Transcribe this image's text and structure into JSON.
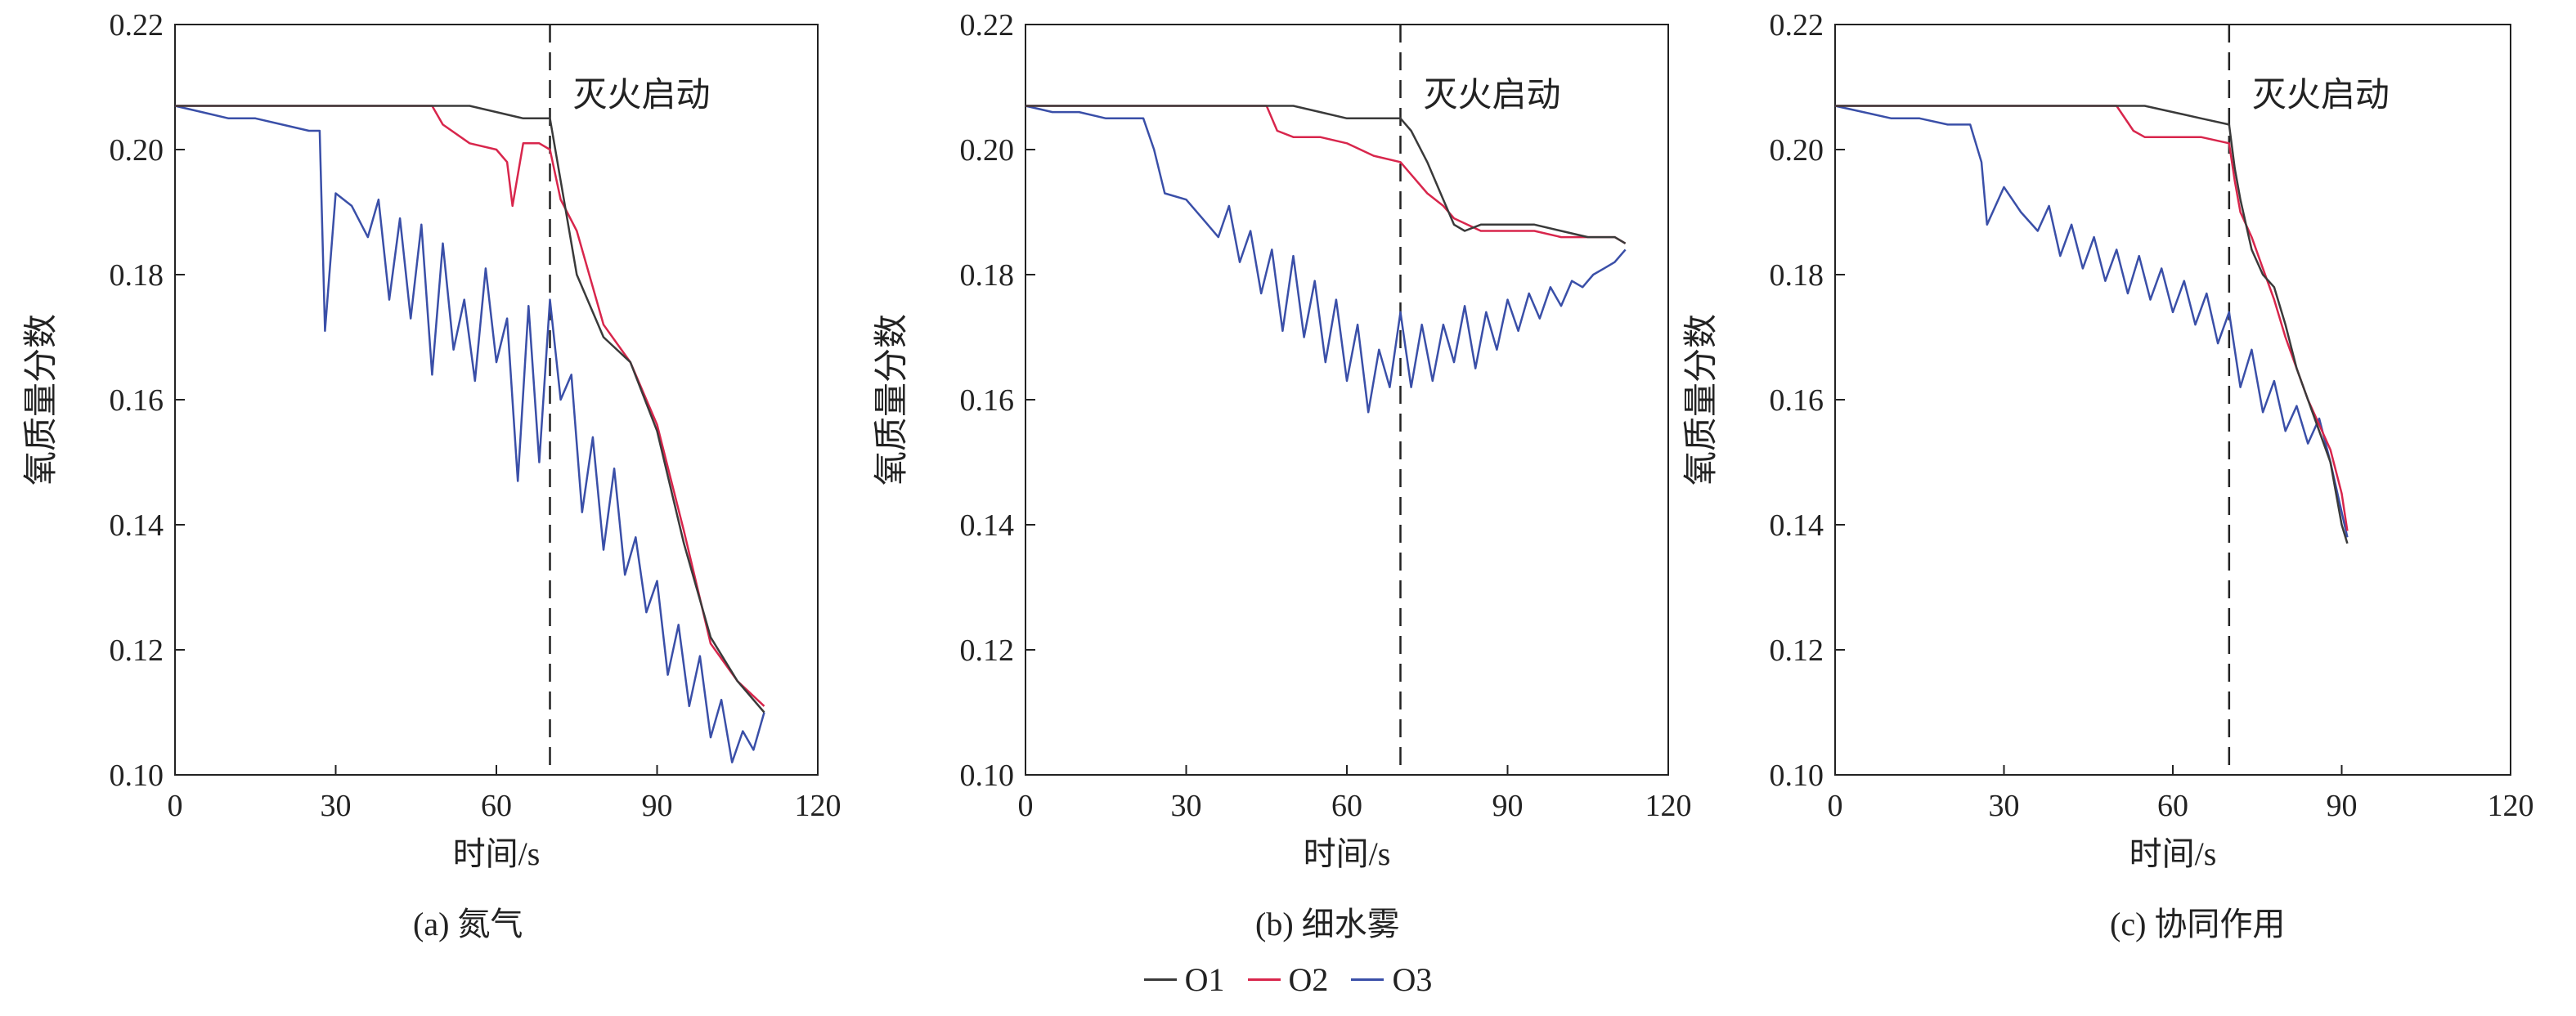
{
  "colors": {
    "O1": "#3a3a3a",
    "O2": "#d8264c",
    "O3": "#3a4fa8",
    "O3_alt": "#2f6e8c",
    "marker": "#222222"
  },
  "legend": [
    {
      "name": "O1",
      "color": "#3a3a3a"
    },
    {
      "name": "O2",
      "color": "#d8264c"
    },
    {
      "name": "O3",
      "color": "#3a4fa8"
    }
  ],
  "chart_data": [
    {
      "type": "line",
      "caption": "(a) 氮气",
      "xlabel": "时间/s",
      "ylabel": "氧质量分数",
      "xlim": [
        0,
        120
      ],
      "ylim": [
        0.1,
        0.22
      ],
      "xticks": [
        "0",
        "30",
        "60",
        "90",
        "120"
      ],
      "yticks": [
        "0.10",
        "0.12",
        "0.14",
        "0.16",
        "0.18",
        "0.20",
        "0.22"
      ],
      "annotation": {
        "text": "灭火启动",
        "x": 70
      },
      "series": [
        {
          "name": "O1",
          "x": [
            0,
            10,
            20,
            30,
            40,
            50,
            55,
            60,
            65,
            68,
            70,
            72,
            75,
            80,
            85,
            90,
            95,
            100,
            105,
            110
          ],
          "values": [
            0.207,
            0.207,
            0.207,
            0.207,
            0.207,
            0.207,
            0.207,
            0.206,
            0.205,
            0.205,
            0.205,
            0.195,
            0.18,
            0.17,
            0.166,
            0.155,
            0.137,
            0.122,
            0.115,
            0.11
          ]
        },
        {
          "name": "O2",
          "x": [
            0,
            10,
            20,
            30,
            40,
            48,
            50,
            55,
            60,
            62,
            63,
            65,
            68,
            70,
            72,
            75,
            80,
            85,
            90,
            95,
            100,
            105,
            110
          ],
          "values": [
            0.207,
            0.207,
            0.207,
            0.207,
            0.207,
            0.207,
            0.204,
            0.201,
            0.2,
            0.198,
            0.191,
            0.201,
            0.201,
            0.2,
            0.192,
            0.187,
            0.172,
            0.166,
            0.156,
            0.139,
            0.121,
            0.115,
            0.111
          ]
        },
        {
          "name": "O3",
          "x": [
            0,
            5,
            10,
            15,
            20,
            25,
            27,
            28,
            30,
            33,
            36,
            38,
            40,
            42,
            44,
            46,
            48,
            50,
            52,
            54,
            56,
            58,
            60,
            62,
            64,
            66,
            68,
            70,
            72,
            74,
            76,
            78,
            80,
            82,
            84,
            86,
            88,
            90,
            92,
            94,
            96,
            98,
            100,
            102,
            104,
            106,
            108,
            110
          ],
          "values": [
            0.207,
            0.206,
            0.205,
            0.205,
            0.204,
            0.203,
            0.203,
            0.171,
            0.193,
            0.191,
            0.186,
            0.192,
            0.176,
            0.189,
            0.173,
            0.188,
            0.164,
            0.185,
            0.168,
            0.176,
            0.163,
            0.181,
            0.166,
            0.173,
            0.147,
            0.175,
            0.15,
            0.176,
            0.16,
            0.164,
            0.142,
            0.154,
            0.136,
            0.149,
            0.132,
            0.138,
            0.126,
            0.131,
            0.116,
            0.124,
            0.111,
            0.119,
            0.106,
            0.112,
            0.102,
            0.107,
            0.104,
            0.11
          ]
        }
      ]
    },
    {
      "type": "line",
      "caption": "(b) 细水雾",
      "xlabel": "时间/s",
      "ylabel": "氧质量分数",
      "xlim": [
        0,
        120
      ],
      "ylim": [
        0.1,
        0.22
      ],
      "xticks": [
        "0",
        "30",
        "60",
        "90",
        "120"
      ],
      "yticks": [
        "0.10",
        "0.12",
        "0.14",
        "0.16",
        "0.18",
        "0.20",
        "0.22"
      ],
      "annotation": {
        "text": "灭火启动",
        "x": 70
      },
      "series": [
        {
          "name": "O1",
          "x": [
            0,
            10,
            20,
            30,
            40,
            50,
            55,
            60,
            65,
            70,
            72,
            75,
            78,
            80,
            82,
            85,
            90,
            95,
            100,
            105,
            110,
            112
          ],
          "values": [
            0.207,
            0.207,
            0.207,
            0.207,
            0.207,
            0.207,
            0.206,
            0.205,
            0.205,
            0.205,
            0.203,
            0.198,
            0.192,
            0.188,
            0.187,
            0.188,
            0.188,
            0.188,
            0.187,
            0.186,
            0.186,
            0.185
          ]
        },
        {
          "name": "O2",
          "x": [
            0,
            10,
            20,
            30,
            40,
            45,
            47,
            50,
            55,
            60,
            65,
            70,
            72,
            75,
            78,
            80,
            85,
            90,
            95,
            100,
            105,
            110,
            112
          ],
          "values": [
            0.207,
            0.207,
            0.207,
            0.207,
            0.207,
            0.207,
            0.203,
            0.202,
            0.202,
            0.201,
            0.199,
            0.198,
            0.196,
            0.193,
            0.191,
            0.189,
            0.187,
            0.187,
            0.187,
            0.186,
            0.186,
            0.186,
            0.185
          ]
        },
        {
          "name": "O3",
          "x": [
            0,
            5,
            10,
            15,
            20,
            22,
            24,
            26,
            30,
            33,
            36,
            38,
            40,
            42,
            44,
            46,
            48,
            50,
            52,
            54,
            56,
            58,
            60,
            62,
            64,
            66,
            68,
            70,
            72,
            74,
            76,
            78,
            80,
            82,
            84,
            86,
            88,
            90,
            92,
            94,
            96,
            98,
            100,
            102,
            104,
            106,
            108,
            110,
            112
          ],
          "values": [
            0.207,
            0.206,
            0.206,
            0.205,
            0.205,
            0.205,
            0.2,
            0.193,
            0.192,
            0.189,
            0.186,
            0.191,
            0.182,
            0.187,
            0.177,
            0.184,
            0.171,
            0.183,
            0.17,
            0.179,
            0.166,
            0.176,
            0.163,
            0.172,
            0.158,
            0.168,
            0.162,
            0.174,
            0.162,
            0.172,
            0.163,
            0.172,
            0.166,
            0.175,
            0.165,
            0.174,
            0.168,
            0.176,
            0.171,
            0.177,
            0.173,
            0.178,
            0.175,
            0.179,
            0.178,
            0.18,
            0.181,
            0.182,
            0.184
          ]
        }
      ]
    },
    {
      "type": "line",
      "caption": "(c) 协同作用",
      "xlabel": "时间/s",
      "ylabel": "氧质量分数",
      "xlim": [
        0,
        120
      ],
      "ylim": [
        0.1,
        0.22
      ],
      "xticks": [
        "0",
        "30",
        "60",
        "90",
        "120"
      ],
      "yticks": [
        "0.10",
        "0.12",
        "0.14",
        "0.16",
        "0.18",
        "0.20",
        "0.22"
      ],
      "annotation": {
        "text": "灭火启动",
        "x": 70
      },
      "series": [
        {
          "name": "O1",
          "x": [
            0,
            10,
            20,
            30,
            40,
            50,
            55,
            60,
            65,
            70,
            71,
            72,
            74,
            76,
            78,
            80,
            82,
            84,
            86,
            88,
            90,
            91
          ],
          "values": [
            0.207,
            0.207,
            0.207,
            0.207,
            0.207,
            0.207,
            0.207,
            0.206,
            0.205,
            0.204,
            0.197,
            0.192,
            0.184,
            0.18,
            0.178,
            0.172,
            0.165,
            0.16,
            0.155,
            0.15,
            0.14,
            0.137
          ]
        },
        {
          "name": "O2",
          "x": [
            0,
            10,
            20,
            30,
            40,
            50,
            53,
            55,
            60,
            65,
            70,
            71,
            72,
            74,
            76,
            78,
            80,
            82,
            84,
            86,
            88,
            90,
            91
          ],
          "values": [
            0.207,
            0.207,
            0.207,
            0.207,
            0.207,
            0.207,
            0.203,
            0.202,
            0.202,
            0.202,
            0.201,
            0.195,
            0.19,
            0.186,
            0.181,
            0.176,
            0.17,
            0.165,
            0.16,
            0.156,
            0.152,
            0.145,
            0.139
          ]
        },
        {
          "name": "O3",
          "x": [
            0,
            5,
            10,
            15,
            20,
            24,
            26,
            27,
            30,
            33,
            36,
            38,
            40,
            42,
            44,
            46,
            48,
            50,
            52,
            54,
            56,
            58,
            60,
            62,
            64,
            66,
            68,
            70,
            72,
            74,
            76,
            78,
            80,
            82,
            84,
            86,
            88,
            90,
            91
          ],
          "values": [
            0.207,
            0.206,
            0.205,
            0.205,
            0.204,
            0.204,
            0.198,
            0.188,
            0.194,
            0.19,
            0.187,
            0.191,
            0.183,
            0.188,
            0.181,
            0.186,
            0.179,
            0.184,
            0.177,
            0.183,
            0.176,
            0.181,
            0.174,
            0.179,
            0.172,
            0.177,
            0.169,
            0.174,
            0.162,
            0.168,
            0.158,
            0.163,
            0.155,
            0.159,
            0.153,
            0.157,
            0.15,
            0.142,
            0.138
          ]
        }
      ]
    }
  ]
}
